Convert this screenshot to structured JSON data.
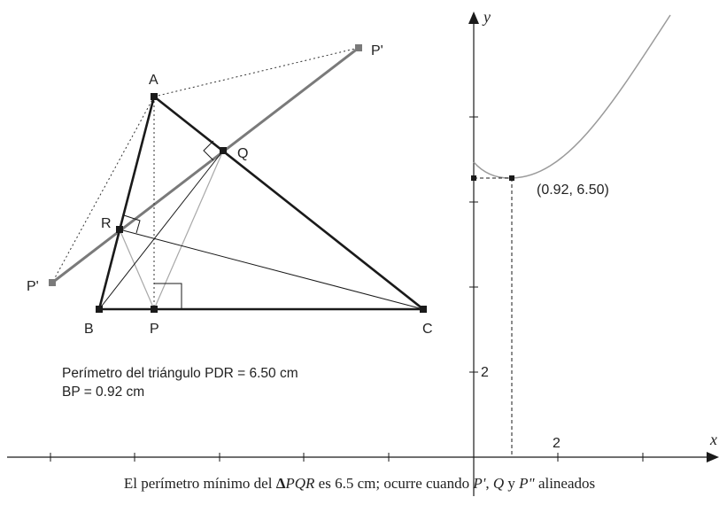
{
  "points": {
    "A": "A",
    "B": "B",
    "C": "C",
    "P": "P",
    "Q": "Q",
    "R": "R",
    "P_prime_1": "P'",
    "P_prime_2": "P'"
  },
  "graph": {
    "x_axis_label": "x",
    "y_axis_label": "y",
    "y_tick_label": "2",
    "x_tick_label": "2",
    "minimum_point_label": "(0.92, 6.50)",
    "minimum_point": {
      "x": 0.92,
      "y": 6.5
    }
  },
  "info": {
    "perimeter_text": "Perímetro del triángulo PDR = 6.50 cm",
    "bp_text": "BP = 0.92 cm"
  },
  "caption": {
    "before": "El perímetro mínimo del ",
    "delta": "Δ",
    "triangle": "PQR",
    "middle": " es 6.5 cm; ocurre cuando ",
    "p1": "P'",
    "sep1": ", ",
    "q": "Q",
    "and": " y ",
    "p2": "P\"",
    "after": " alineados"
  },
  "colors": {
    "stroke": "#1a1a1a",
    "gray_line": "#7a7a7a",
    "light_gray": "#a8a8a8",
    "curve": "#9a9a9a"
  }
}
